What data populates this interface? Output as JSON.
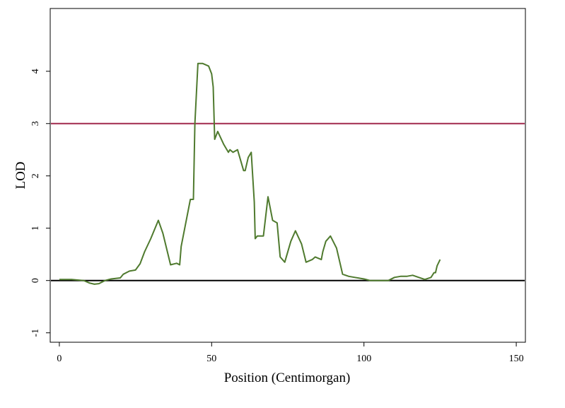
{
  "chart_data": {
    "type": "line",
    "title": "",
    "xlabel": "Position (Centimorgan)",
    "ylabel": "LOD",
    "xlim": [
      -3,
      153
    ],
    "ylim": [
      -1.18,
      5.2
    ],
    "xticks": [
      0,
      50,
      100,
      150
    ],
    "yticks": [
      -1,
      0,
      1,
      2,
      3,
      4
    ],
    "grid": false,
    "legend": "none",
    "reference_lines": [
      {
        "y": 3,
        "color": "#a0284c"
      },
      {
        "y": 0,
        "color": "#000000"
      }
    ],
    "series": [
      {
        "color": "#4f7a2e",
        "x": [
          0,
          4,
          8,
          10,
          11.5,
          13,
          15,
          17,
          20,
          21,
          23,
          25,
          26.5,
          28,
          30,
          32.5,
          34,
          36.5,
          38.5,
          39.5,
          40,
          41.5,
          43,
          44,
          44.5,
          45.5,
          47,
          49,
          50,
          50.5,
          51,
          52,
          54,
          55.5,
          56,
          57,
          58.5,
          60.5,
          61,
          62,
          63,
          64,
          64.3,
          65,
          66,
          67,
          68.5,
          69,
          70,
          71.5,
          72.5,
          74,
          76,
          77.5,
          79.5,
          81,
          83,
          84,
          86,
          86.5,
          87.5,
          89,
          91,
          93,
          95,
          97,
          100,
          102,
          105,
          108,
          110,
          112,
          114,
          116,
          118,
          120,
          122,
          123,
          123.5,
          124,
          125
        ],
        "y": [
          0.02,
          0.02,
          0.0,
          -0.05,
          -0.07,
          -0.06,
          0.0,
          0.03,
          0.05,
          0.12,
          0.18,
          0.2,
          0.32,
          0.55,
          0.8,
          1.15,
          0.9,
          0.3,
          0.33,
          0.3,
          0.65,
          1.1,
          1.55,
          1.55,
          3.0,
          4.15,
          4.15,
          4.1,
          3.95,
          3.7,
          2.7,
          2.85,
          2.6,
          2.45,
          2.5,
          2.45,
          2.5,
          2.1,
          2.1,
          2.35,
          2.45,
          1.5,
          0.8,
          0.85,
          0.85,
          0.85,
          1.6,
          1.45,
          1.15,
          1.1,
          0.45,
          0.35,
          0.75,
          0.95,
          0.7,
          0.35,
          0.4,
          0.45,
          0.4,
          0.55,
          0.75,
          0.85,
          0.62,
          0.12,
          0.08,
          0.06,
          0.03,
          0.0,
          0.0,
          0.0,
          0.06,
          0.08,
          0.08,
          0.1,
          0.06,
          0.02,
          0.06,
          0.15,
          0.15,
          0.28,
          0.4
        ]
      }
    ]
  }
}
